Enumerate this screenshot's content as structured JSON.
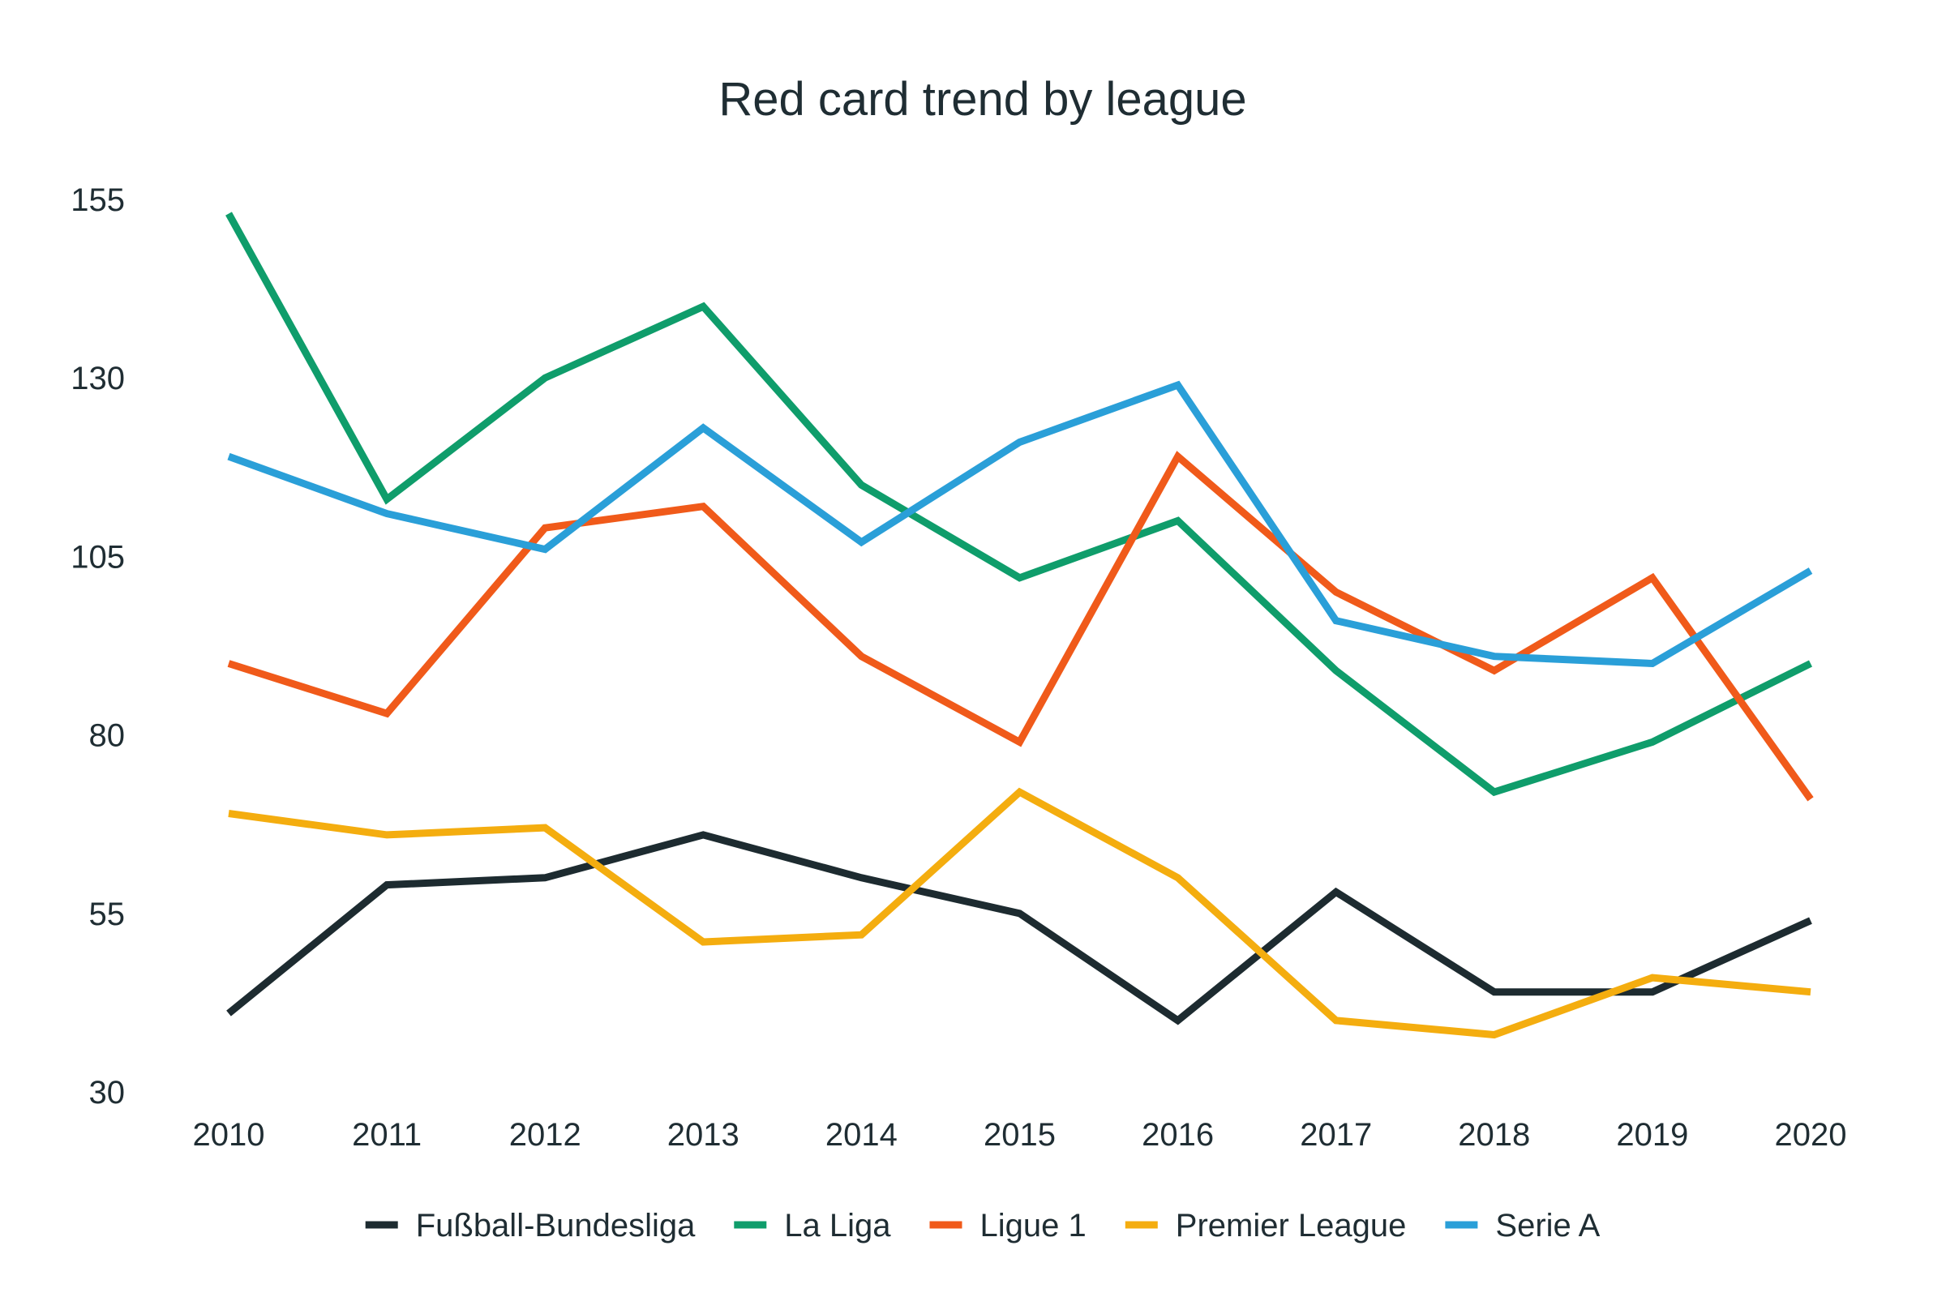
{
  "chart_data": {
    "type": "line",
    "title": "Red card trend by league",
    "xlabel": "",
    "ylabel": "",
    "x": [
      "2010",
      "2011",
      "2012",
      "2013",
      "2014",
      "2015",
      "2016",
      "2017",
      "2018",
      "2019",
      "2020"
    ],
    "yticks": [
      30,
      55,
      80,
      105,
      130,
      155
    ],
    "ylim": [
      30,
      155
    ],
    "grid": false,
    "legend_position": "bottom",
    "series": [
      {
        "name": "Fußball-Bundesliga",
        "color": "#1d2b30",
        "values": [
          41,
          59,
          60,
          66,
          60,
          55,
          40,
          58,
          44,
          44,
          54
        ]
      },
      {
        "name": "La Liga",
        "color": "#0f9d6b",
        "values": [
          153,
          113,
          130,
          140,
          115,
          102,
          110,
          89,
          72,
          79,
          90
        ]
      },
      {
        "name": "Ligue 1",
        "color": "#f05a1a",
        "values": [
          90,
          83,
          109,
          112,
          91,
          79,
          119,
          100,
          89,
          102,
          71
        ]
      },
      {
        "name": "Premier League",
        "color": "#f4ad0f",
        "values": [
          69,
          66,
          67,
          51,
          52,
          72,
          60,
          40,
          38,
          46,
          44
        ]
      },
      {
        "name": "Serie A",
        "color": "#2a9fd8",
        "values": [
          119,
          111,
          106,
          123,
          107,
          121,
          129,
          96,
          91,
          90,
          103
        ]
      }
    ]
  }
}
